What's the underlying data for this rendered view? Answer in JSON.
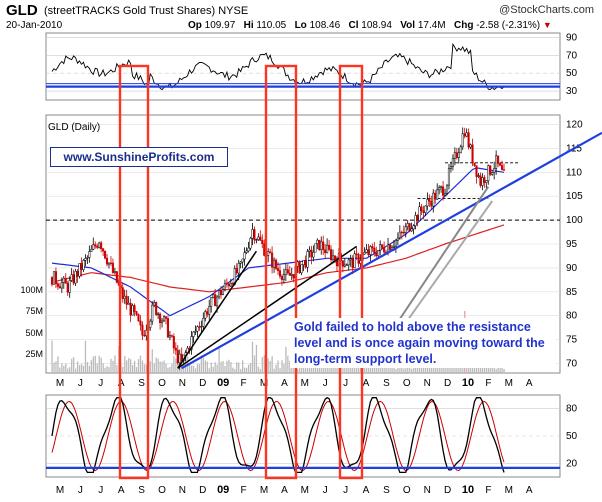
{
  "header": {
    "ticker": "GLD",
    "name": "(streetTRACKS Gold Trust Shares)",
    "exchange": "NYSE",
    "brand": "@StockCharts.com",
    "date": "20-Jan-2010",
    "op_label": "Op",
    "op_value": "109.97",
    "hi_label": "Hi",
    "hi_value": "110.05",
    "lo_label": "Lo",
    "lo_value": "108.46",
    "cl_label": "Cl",
    "cl_value": "108.94",
    "vol_label": "Vol",
    "vol_value": "17.4M",
    "chg_label": "Chg",
    "chg_value": "-2.58 (-2.31%)",
    "chg_color": "#cc0000"
  },
  "main_label": "GLD (Daily)",
  "url_text": "www.SunshineProfits.com",
  "annotation": "Gold failed to hold above the resistance level and is once again moving toward the long-term support level.",
  "colors": {
    "price_up": "#000000",
    "price_down": "#cc0000",
    "ma_short": "#1f2fd6",
    "ma_long": "#dd2222",
    "support_line": "#1f3fe0",
    "highlight_box": "#ff3322",
    "volume": "#bbbbbb"
  },
  "chart_data": [
    {
      "type": "line",
      "name": "rsi-top",
      "yticks": [
        "90",
        "70",
        "50",
        "30"
      ],
      "ylim": [
        20,
        95
      ],
      "reference_level": 35
    },
    {
      "type": "candlestick",
      "name": "price",
      "label": "GLD (Daily)",
      "yticks": [
        "120",
        "115",
        "110",
        "105",
        "100",
        "95",
        "90",
        "85",
        "80",
        "75",
        "70"
      ],
      "ylim": [
        68,
        122
      ],
      "volume_ticks": [
        "100M",
        "75M",
        "50M",
        "25M"
      ],
      "xticks": [
        "M",
        "J",
        "J",
        "A",
        "S",
        "O",
        "N",
        "D",
        "09",
        "F",
        "M",
        "A",
        "M",
        "J",
        "J",
        "A",
        "S",
        "O",
        "N",
        "D",
        "10",
        "F",
        "M",
        "A"
      ],
      "resistance_level": 112,
      "mid_level": 104.5,
      "dashed_level": 100,
      "path_anchors": [
        {
          "t": 0,
          "v": 88
        },
        {
          "t": 8,
          "v": 86
        },
        {
          "t": 18,
          "v": 92
        },
        {
          "t": 24,
          "v": 96
        },
        {
          "t": 30,
          "v": 90
        },
        {
          "t": 36,
          "v": 84
        },
        {
          "t": 42,
          "v": 80
        },
        {
          "t": 46,
          "v": 76
        },
        {
          "t": 52,
          "v": 82
        },
        {
          "t": 58,
          "v": 78
        },
        {
          "t": 63,
          "v": 72
        },
        {
          "t": 66,
          "v": 70
        },
        {
          "t": 72,
          "v": 76
        },
        {
          "t": 80,
          "v": 82
        },
        {
          "t": 88,
          "v": 86
        },
        {
          "t": 96,
          "v": 90
        },
        {
          "t": 102,
          "v": 98
        },
        {
          "t": 108,
          "v": 94
        },
        {
          "t": 114,
          "v": 90
        },
        {
          "t": 120,
          "v": 88
        },
        {
          "t": 128,
          "v": 91
        },
        {
          "t": 136,
          "v": 95
        },
        {
          "t": 144,
          "v": 92
        },
        {
          "t": 152,
          "v": 91
        },
        {
          "t": 160,
          "v": 93
        },
        {
          "t": 168,
          "v": 94
        },
        {
          "t": 176,
          "v": 96
        },
        {
          "t": 184,
          "v": 100
        },
        {
          "t": 192,
          "v": 104
        },
        {
          "t": 200,
          "v": 107
        },
        {
          "t": 206,
          "v": 114
        },
        {
          "t": 210,
          "v": 119
        },
        {
          "t": 214,
          "v": 113
        },
        {
          "t": 218,
          "v": 108
        },
        {
          "t": 222,
          "v": 110
        },
        {
          "t": 226,
          "v": 112
        },
        {
          "t": 230,
          "v": 109
        }
      ],
      "ma_short_anchors": [
        {
          "t": 0,
          "v": 91
        },
        {
          "t": 20,
          "v": 90
        },
        {
          "t": 40,
          "v": 86
        },
        {
          "t": 60,
          "v": 80
        },
        {
          "t": 80,
          "v": 84
        },
        {
          "t": 100,
          "v": 90
        },
        {
          "t": 120,
          "v": 91
        },
        {
          "t": 140,
          "v": 92
        },
        {
          "t": 160,
          "v": 92
        },
        {
          "t": 180,
          "v": 97
        },
        {
          "t": 200,
          "v": 105
        },
        {
          "t": 215,
          "v": 111
        },
        {
          "t": 230,
          "v": 110
        }
      ],
      "ma_long_anchors": [
        {
          "t": 0,
          "v": 87
        },
        {
          "t": 20,
          "v": 89
        },
        {
          "t": 40,
          "v": 88
        },
        {
          "t": 60,
          "v": 86
        },
        {
          "t": 80,
          "v": 85
        },
        {
          "t": 100,
          "v": 86
        },
        {
          "t": 120,
          "v": 87
        },
        {
          "t": 140,
          "v": 89
        },
        {
          "t": 160,
          "v": 90
        },
        {
          "t": 180,
          "v": 92
        },
        {
          "t": 200,
          "v": 95
        },
        {
          "t": 230,
          "v": 99
        }
      ]
    },
    {
      "type": "line",
      "name": "stochastic",
      "yticks": [
        "80",
        "50",
        "20"
      ],
      "ylim": [
        5,
        95
      ],
      "reference_level": 15
    }
  ]
}
